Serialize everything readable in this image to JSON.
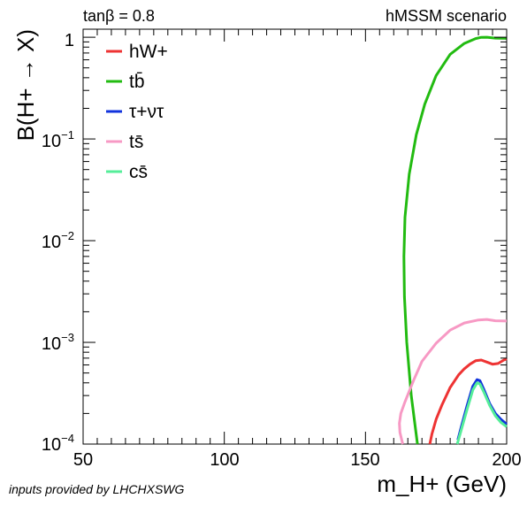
{
  "chart_data": {
    "type": "line",
    "header_left": "tanβ = 0.8",
    "header_right": "hMSSM scenario",
    "credit": "inputs provided by LHCHXSWG",
    "xlabel": "m_H+ (GeV)",
    "ylabel": "B(H+ → X)",
    "xlim": [
      50,
      200
    ],
    "ylim": [
      0.0001,
      1.2
    ],
    "yscale": "log",
    "x_ticks": [
      50,
      100,
      150,
      200
    ],
    "x_tick_labels": [
      "50",
      "100",
      "150",
      "200"
    ],
    "y_ticks": [
      0.0001,
      0.001,
      0.01,
      0.1,
      1
    ],
    "y_tick_labels": [
      {
        "base": "10",
        "exp": "−4"
      },
      {
        "base": "10",
        "exp": "−3"
      },
      {
        "base": "10",
        "exp": "−2"
      },
      {
        "base": "10",
        "exp": "−1"
      },
      {
        "base": "1",
        "exp": ""
      }
    ],
    "legend_position": "top-left",
    "series": [
      {
        "name": "hW+",
        "color": "#ee3333",
        "points": [
          [
            172.8,
            0.0001
          ],
          [
            173.5,
            0.000125
          ],
          [
            175,
            0.000175
          ],
          [
            177,
            0.00024
          ],
          [
            180,
            0.00036
          ],
          [
            183,
            0.00048
          ],
          [
            185,
            0.00055
          ],
          [
            187,
            0.00061
          ],
          [
            189,
            0.00066
          ],
          [
            191,
            0.00067
          ],
          [
            193,
            0.00064
          ],
          [
            195,
            0.00061
          ],
          [
            197,
            0.00062
          ],
          [
            199,
            0.00067
          ],
          [
            200,
            0.00069
          ]
        ]
      },
      {
        "name": "tb̄",
        "color": "#22bb11",
        "points": [
          [
            168.4,
            0.0001
          ],
          [
            166.2,
            0.0003
          ],
          [
            164.6,
            0.001
          ],
          [
            163.8,
            0.0028
          ],
          [
            163.6,
            0.007
          ],
          [
            164.0,
            0.017
          ],
          [
            165.5,
            0.045
          ],
          [
            168,
            0.11
          ],
          [
            171,
            0.22
          ],
          [
            175,
            0.42
          ],
          [
            180,
            0.68
          ],
          [
            185,
            0.87
          ],
          [
            189,
            0.97
          ],
          [
            191,
            0.998
          ],
          [
            193,
            1.0
          ],
          [
            196,
            0.98
          ],
          [
            200,
            0.975
          ]
        ]
      },
      {
        "name": "τ+ντ",
        "color": "#1133dd",
        "points": [
          [
            182.7,
            0.00011
          ],
          [
            184,
            0.00015
          ],
          [
            186,
            0.00024
          ],
          [
            188,
            0.00037
          ],
          [
            189.5,
            0.00043
          ],
          [
            190.5,
            0.00042
          ],
          [
            192,
            0.00034
          ],
          [
            194,
            0.00025
          ],
          [
            196,
            0.0002
          ],
          [
            198,
            0.000175
          ],
          [
            200,
            0.000157
          ]
        ]
      },
      {
        "name": "ts̄",
        "color": "#f799c4",
        "points": [
          [
            163.2,
            0.0001
          ],
          [
            162.2,
            0.00013
          ],
          [
            162,
            0.00016
          ],
          [
            162.5,
            0.0002
          ],
          [
            164,
            0.00026
          ],
          [
            167,
            0.00042
          ],
          [
            170,
            0.00065
          ],
          [
            175,
            0.00098
          ],
          [
            180,
            0.00132
          ],
          [
            185,
            0.00155
          ],
          [
            190,
            0.00166
          ],
          [
            193,
            0.00168
          ],
          [
            196,
            0.00163
          ],
          [
            200,
            0.00162
          ]
        ]
      },
      {
        "name": "cs̄",
        "color": "#55ee99",
        "points": [
          [
            182.5,
            0.0001
          ],
          [
            184,
            0.00014
          ],
          [
            186,
            0.00022
          ],
          [
            188,
            0.00034
          ],
          [
            189.5,
            0.0004
          ],
          [
            190.5,
            0.00039
          ],
          [
            192,
            0.00032
          ],
          [
            194,
            0.00024
          ],
          [
            196,
            0.00019
          ],
          [
            198,
            0.000163
          ],
          [
            200,
            0.000148
          ]
        ]
      }
    ]
  }
}
